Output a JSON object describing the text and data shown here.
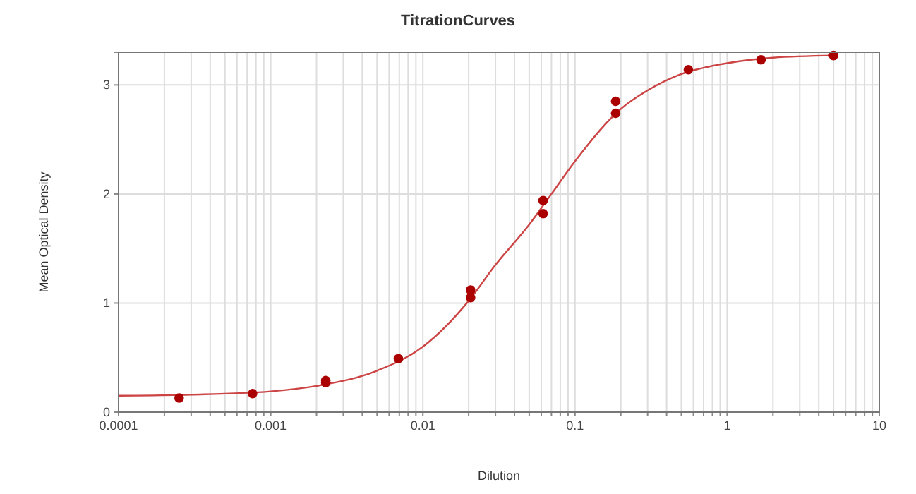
{
  "chart_data": {
    "type": "scatter",
    "title": "TitrationCurves",
    "xlabel": "Dilution",
    "ylabel": "Mean Optical Density",
    "log": "x",
    "grid": true,
    "marker": "circle",
    "xlim": [
      0.0001,
      10
    ],
    "ylim": [
      0,
      3.3
    ],
    "xticks": [
      {
        "value": 0.0001,
        "label": "0.0001"
      },
      {
        "value": 0.0002,
        "label": null
      },
      {
        "value": 0.0003,
        "label": null
      },
      {
        "value": 0.0004,
        "label": null
      },
      {
        "value": 0.0005,
        "label": null
      },
      {
        "value": 0.0006,
        "label": null
      },
      {
        "value": 0.0007,
        "label": null
      },
      {
        "value": 0.0008,
        "label": null
      },
      {
        "value": 0.0009,
        "label": null
      },
      {
        "value": 0.001,
        "label": "0.001"
      },
      {
        "value": 0.002,
        "label": null
      },
      {
        "value": 0.003,
        "label": null
      },
      {
        "value": 0.004,
        "label": null
      },
      {
        "value": 0.005,
        "label": null
      },
      {
        "value": 0.006,
        "label": null
      },
      {
        "value": 0.007,
        "label": null
      },
      {
        "value": 0.008,
        "label": null
      },
      {
        "value": 0.009,
        "label": null
      },
      {
        "value": 0.01,
        "label": "0.01"
      },
      {
        "value": 0.02,
        "label": null
      },
      {
        "value": 0.03,
        "label": null
      },
      {
        "value": 0.04,
        "label": null
      },
      {
        "value": 0.05,
        "label": null
      },
      {
        "value": 0.06,
        "label": null
      },
      {
        "value": 0.07,
        "label": null
      },
      {
        "value": 0.08,
        "label": null
      },
      {
        "value": 0.09,
        "label": null
      },
      {
        "value": 0.1,
        "label": "0.1"
      },
      {
        "value": 0.2,
        "label": null
      },
      {
        "value": 0.3,
        "label": null
      },
      {
        "value": 0.4,
        "label": null
      },
      {
        "value": 0.5,
        "label": null
      },
      {
        "value": 0.6,
        "label": null
      },
      {
        "value": 0.7,
        "label": null
      },
      {
        "value": 0.8,
        "label": null
      },
      {
        "value": 0.9,
        "label": null
      },
      {
        "value": 1,
        "label": "1"
      },
      {
        "value": 2,
        "label": null
      },
      {
        "value": 3,
        "label": null
      },
      {
        "value": 4,
        "label": null
      },
      {
        "value": 5,
        "label": null
      },
      {
        "value": 6,
        "label": null
      },
      {
        "value": 7,
        "label": null
      },
      {
        "value": 8,
        "label": null
      },
      {
        "value": 9,
        "label": null
      },
      {
        "value": 10,
        "label": "10"
      }
    ],
    "yticks": [
      0,
      1,
      2,
      3
    ],
    "series": [
      {
        "type": "line",
        "color": "#cc4444",
        "marker": "none",
        "line_style": "solid",
        "x": [
          0.0001,
          0.0003,
          0.001,
          0.002,
          0.005,
          0.01,
          0.02,
          0.03,
          0.05,
          0.07,
          0.1,
          0.2,
          0.3,
          0.5,
          1,
          2,
          5
        ],
        "values": [
          0.15,
          0.16,
          0.19,
          0.24,
          0.38,
          0.6,
          1.02,
          1.35,
          1.72,
          2.0,
          2.3,
          2.78,
          2.95,
          3.1,
          3.2,
          3.25,
          3.27
        ]
      },
      {
        "color": "#aa0000",
        "x": [
          0.00025,
          0.00076,
          0.0023,
          0.0023,
          0.0069,
          0.0206,
          0.0206,
          0.0617,
          0.0617,
          0.185,
          0.185,
          0.556,
          1.67,
          5
        ],
        "values": [
          0.13,
          0.17,
          0.27,
          0.29,
          0.49,
          1.05,
          1.12,
          1.82,
          1.94,
          2.74,
          2.85,
          3.14,
          3.23,
          3.27
        ]
      }
    ]
  }
}
